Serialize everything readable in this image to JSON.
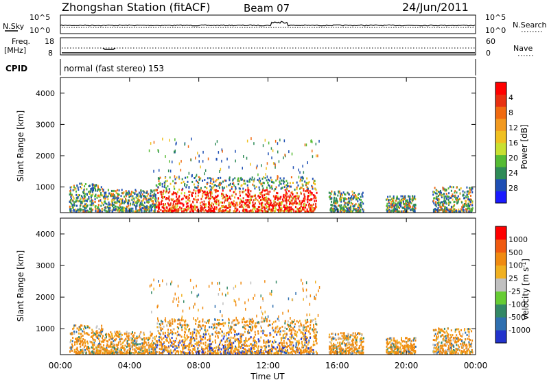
{
  "header": {
    "station": "Zhongshan Station (fitACF)",
    "beam": "Beam 07",
    "date": "24/Jun/2011"
  },
  "status_panels": {
    "nsky_label": "N.Sky",
    "nsky_ticks": [
      "10^5",
      "10^0"
    ],
    "nsearch_label": "N.Search",
    "nsearch_ticks": [
      "10^5",
      "10^0"
    ],
    "freq_label": "Freq.",
    "freq_unit": "[MHz]",
    "freq_ticks": [
      "18",
      "8"
    ],
    "nave_label": "Nave",
    "nave_ticks": [
      "60",
      "0"
    ],
    "cpid_label": "CPID",
    "cpid_text": "normal (fast stereo) 153"
  },
  "chart_data": [
    {
      "type": "heatmap",
      "name_on_chart": "Power [dB]",
      "ylabel": "Slant Range [km]",
      "xlabel": "Time UT",
      "xlim": [
        "00:00",
        "24:00"
      ],
      "ylim": [
        180,
        4500
      ],
      "yticks": [
        1000,
        2000,
        3000,
        4000
      ],
      "colorbar": {
        "label": "Power [dB]",
        "ticks": [
          "4",
          "8",
          "12",
          "16",
          "20",
          "24",
          "28"
        ],
        "colors": [
          "#1a1aff",
          "#1f4fb4",
          "#2e8b57",
          "#55bb33",
          "#c8e030",
          "#f0c020",
          "#f29a20",
          "#f06a10",
          "#e83010",
          "#ff0000"
        ]
      },
      "echo_regions_note": "scatter between 00:30-23:30 UT, strongest 05:30-14:30 UT below 1200 km"
    },
    {
      "type": "heatmap",
      "name_on_chart": "Velocity [m s^-1]",
      "ylabel": "Slant Range [km]",
      "xlabel": "Time UT",
      "xlim": [
        "00:00",
        "24:00"
      ],
      "ylim": [
        180,
        4500
      ],
      "yticks": [
        1000,
        2000,
        3000,
        4000
      ],
      "colorbar": {
        "label": "Velocity [m s",
        "label_sup": "-1",
        "label_end": "]",
        "ticks": [
          "1000",
          "500",
          "100",
          "25",
          "-25",
          "-100",
          "-500",
          "-1000"
        ],
        "colors": [
          "#2233cc",
          "#2f6fb0",
          "#338866",
          "#66cc33",
          "#c0c0c0",
          "#f0b020",
          "#f08a10",
          "#f05a10",
          "#ff0000"
        ]
      }
    }
  ],
  "time_axis": {
    "ticks": [
      "00:00",
      "04:00",
      "08:00",
      "12:00",
      "16:00",
      "20:00",
      "00:00"
    ],
    "label": "Time UT"
  }
}
